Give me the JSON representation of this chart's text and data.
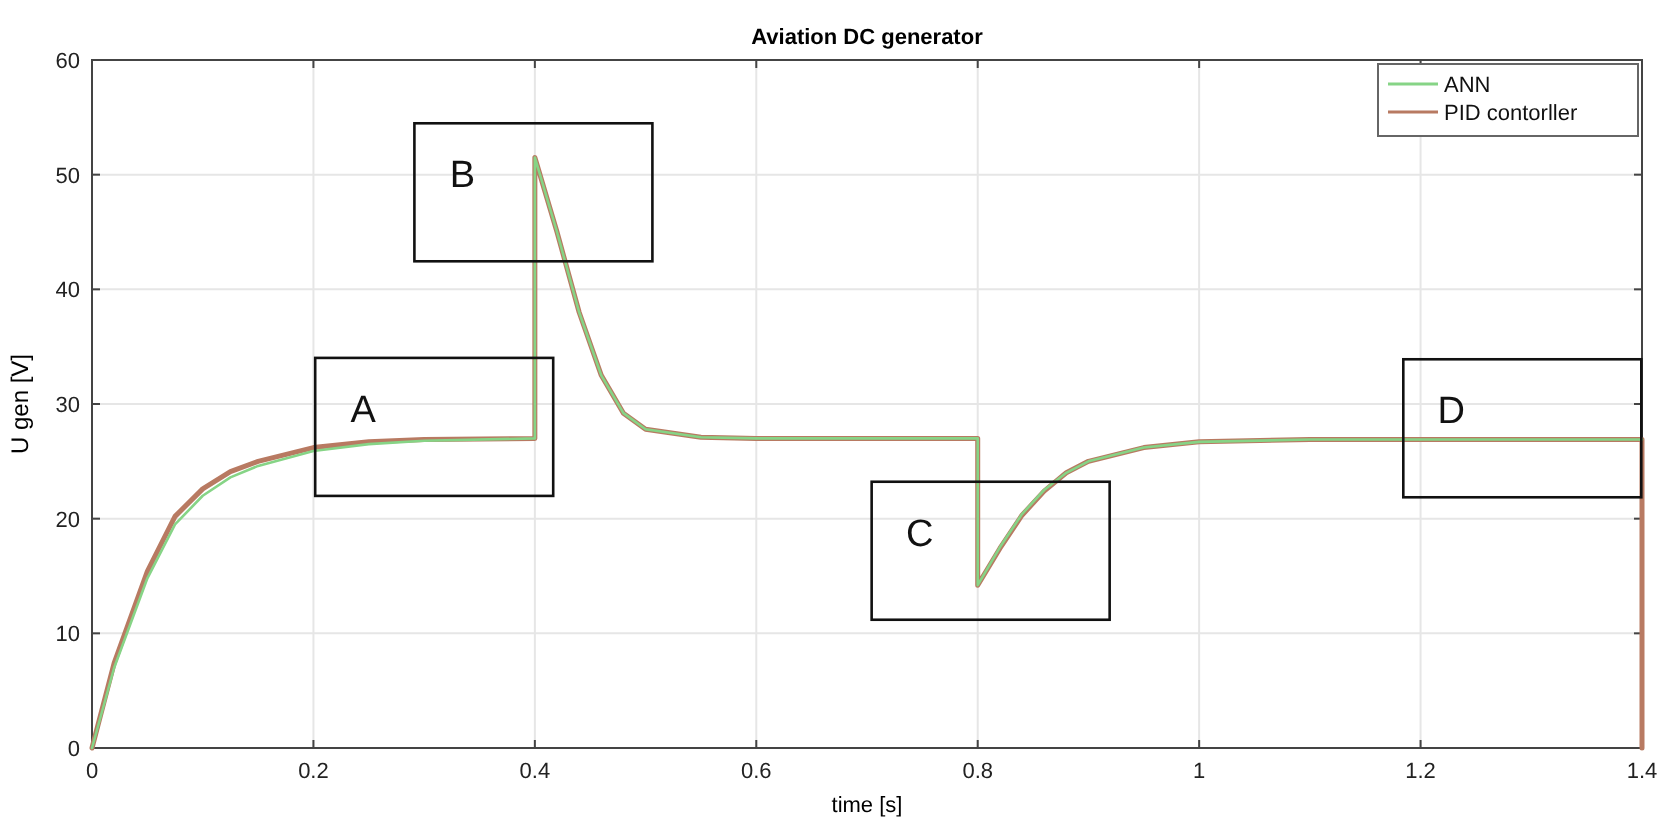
{
  "chart_data": {
    "type": "line",
    "title": "Aviation DC generator",
    "xlabel": "time [s]",
    "ylabel": "U gen [V]",
    "xlim": [
      0,
      1.4
    ],
    "ylim": [
      0,
      60
    ],
    "xticks": [
      0,
      0.2,
      0.4,
      0.6,
      0.8,
      1,
      1.2,
      1.4
    ],
    "yticks": [
      0,
      10,
      20,
      30,
      40,
      50,
      60
    ],
    "grid": true,
    "legend": "top right",
    "marker": "none",
    "line_style": "solid",
    "series": [
      {
        "name": "ANN",
        "color": "#86d486",
        "x": [
          0,
          0.02,
          0.05,
          0.075,
          0.1,
          0.125,
          0.15,
          0.2,
          0.25,
          0.3,
          0.4,
          0.4,
          0.42,
          0.44,
          0.46,
          0.48,
          0.5,
          0.55,
          0.6,
          0.8,
          0.8,
          0.82,
          0.84,
          0.86,
          0.88,
          0.9,
          0.95,
          1,
          1.1,
          1.4
        ],
        "values": [
          0,
          7,
          14.8,
          19.5,
          22,
          23.6,
          24.6,
          25.9,
          26.5,
          26.8,
          27,
          51.5,
          45,
          38,
          32.5,
          29.2,
          27.8,
          27.1,
          27,
          27,
          14.2,
          17.5,
          20.4,
          22.5,
          24,
          25,
          26.2,
          26.7,
          26.9,
          26.9
        ]
      },
      {
        "name": "PID contorller",
        "color": "#b87a62",
        "x": [
          0,
          0.02,
          0.05,
          0.075,
          0.1,
          0.125,
          0.15,
          0.2,
          0.25,
          0.3,
          0.4,
          0.4,
          0.42,
          0.44,
          0.46,
          0.48,
          0.5,
          0.55,
          0.6,
          0.8,
          0.8,
          0.82,
          0.84,
          0.86,
          0.88,
          0.9,
          0.95,
          1,
          1.1,
          1.4,
          1.4
        ],
        "values": [
          0,
          7.4,
          15.4,
          20.2,
          22.6,
          24.1,
          25,
          26.2,
          26.7,
          26.9,
          27,
          51.5,
          45,
          38,
          32.5,
          29.2,
          27.8,
          27.1,
          27,
          27,
          14.2,
          17.4,
          20.3,
          22.4,
          24,
          25,
          26.2,
          26.7,
          26.9,
          26.9,
          0
        ]
      }
    ],
    "annotations": [
      "A",
      "B",
      "C",
      "D"
    ]
  }
}
